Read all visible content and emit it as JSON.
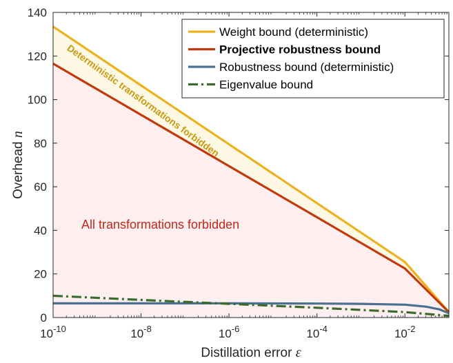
{
  "chart_data": {
    "type": "line",
    "xlabel": "Distillation error",
    "xlabel_symbol": "ε",
    "ylabel": "Overhead",
    "ylabel_symbol": "n",
    "xscale": "log",
    "xlim": [
      1e-10,
      0.1
    ],
    "ylim": [
      0,
      140
    ],
    "xticks": [
      {
        "value": 1e-10,
        "base": "10",
        "exp": "-10"
      },
      {
        "value": 1e-08,
        "base": "10",
        "exp": "-8"
      },
      {
        "value": 1e-06,
        "base": "10",
        "exp": "-6"
      },
      {
        "value": 0.0001,
        "base": "10",
        "exp": "-4"
      },
      {
        "value": 0.01,
        "base": "10",
        "exp": "-2"
      }
    ],
    "yticks": [
      0,
      20,
      40,
      60,
      80,
      100,
      120,
      140
    ],
    "grid": false,
    "legend_position": "top-right",
    "series": [
      {
        "name": "Weight bound (deterministic)",
        "color": "#EDB120",
        "style": "solid",
        "bold": false,
        "points": [
          [
            1e-10,
            133.5
          ],
          [
            1e-08,
            106.5
          ],
          [
            1e-06,
            79.5
          ],
          [
            0.0001,
            52.5
          ],
          [
            0.01,
            25.5
          ],
          [
            0.1,
            2.5
          ]
        ]
      },
      {
        "name": "Projective robustness bound",
        "color": "#C0390B",
        "style": "solid",
        "bold": true,
        "points": [
          [
            1e-10,
            116.5
          ],
          [
            1e-08,
            93.0
          ],
          [
            1e-06,
            69.5
          ],
          [
            0.0001,
            46.0
          ],
          [
            0.01,
            22.5
          ],
          [
            0.1,
            2.5
          ]
        ]
      },
      {
        "name": "Robustness bound (deterministic)",
        "color": "#4A7090",
        "style": "solid",
        "bold": false,
        "points": [
          [
            1e-10,
            6.5
          ],
          [
            1e-08,
            6.5
          ],
          [
            1e-06,
            6.5
          ],
          [
            0.0001,
            6.4
          ],
          [
            0.001,
            6.3
          ],
          [
            0.01,
            5.9
          ],
          [
            0.03,
            5.0
          ],
          [
            0.06,
            3.8
          ],
          [
            0.1,
            2.0
          ]
        ]
      },
      {
        "name": "Eigenvalue bound",
        "color": "#3A6B2C",
        "style": "dashdot",
        "bold": false,
        "points": [
          [
            1e-10,
            10.0
          ],
          [
            1e-08,
            8.1
          ],
          [
            1e-06,
            6.3
          ],
          [
            0.0001,
            4.5
          ],
          [
            0.01,
            2.5
          ],
          [
            0.1,
            0.8
          ]
        ]
      }
    ],
    "regions": [
      {
        "label": "Deterministic transformations forbidden",
        "between": [
          "Projective robustness bound",
          "Weight bound (deterministic)"
        ],
        "fill": "#FDF8E4"
      },
      {
        "label": "All transformations forbidden",
        "below": "Projective robustness bound",
        "fill": "#FDEFEF"
      }
    ],
    "annotations": [
      {
        "text": "Deterministic transformations forbidden",
        "color": "#C89A12"
      },
      {
        "text": "All transformations forbidden",
        "color": "#C0281B"
      }
    ]
  }
}
